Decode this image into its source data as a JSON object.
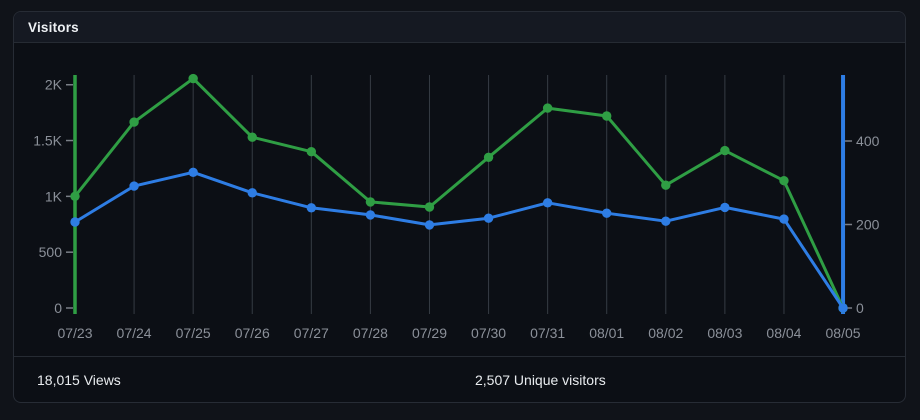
{
  "card": {
    "title": "Visitors"
  },
  "footer": {
    "views": "18,015 Views",
    "unique_visitors": "2,507 Unique visitors"
  },
  "colors": {
    "views_green": "#2f9e44",
    "unique_blue": "#2e7de4",
    "grid": "#363c44",
    "axis_text": "#8b9099",
    "tick": "#7a7f87",
    "page_bg": "#101319",
    "card_bg": "#0c0f15",
    "header_bg": "#151922",
    "border": "#272c35"
  },
  "chart_data": {
    "type": "line",
    "title": "Visitors",
    "categories": [
      "07/23",
      "07/24",
      "07/25",
      "07/26",
      "07/27",
      "07/28",
      "07/29",
      "07/30",
      "07/31",
      "08/01",
      "08/02",
      "08/03",
      "08/04",
      "08/05"
    ],
    "series": [
      {
        "name": "Views",
        "axis": "left",
        "color": "#2f9e44",
        "values": [
          1000,
          1665,
          2055,
          1530,
          1400,
          950,
          905,
          1350,
          1790,
          1720,
          1100,
          1410,
          1140,
          0
        ]
      },
      {
        "name": "Unique visitors",
        "axis": "right",
        "color": "#2e7de4",
        "values": [
          206,
          292,
          325,
          276,
          240,
          223,
          199,
          215,
          252,
          227,
          208,
          241,
          213,
          0
        ]
      }
    ],
    "axes": {
      "left": {
        "tick_labels": [
          "2K",
          "1.5K",
          "1K",
          "500",
          "0"
        ],
        "tick_values": [
          2000,
          1500,
          1000,
          500,
          0
        ],
        "range": [
          0,
          2090
        ],
        "color": "#2f9e44"
      },
      "right": {
        "tick_labels": [
          "400",
          "200",
          "0"
        ],
        "tick_values": [
          400,
          200,
          0
        ],
        "range": [
          0,
          560
        ],
        "color": "#2e7de4"
      }
    },
    "grid": "vertical",
    "legend": "none",
    "totals": {
      "views": 18015,
      "unique_visitors": 2507
    }
  }
}
